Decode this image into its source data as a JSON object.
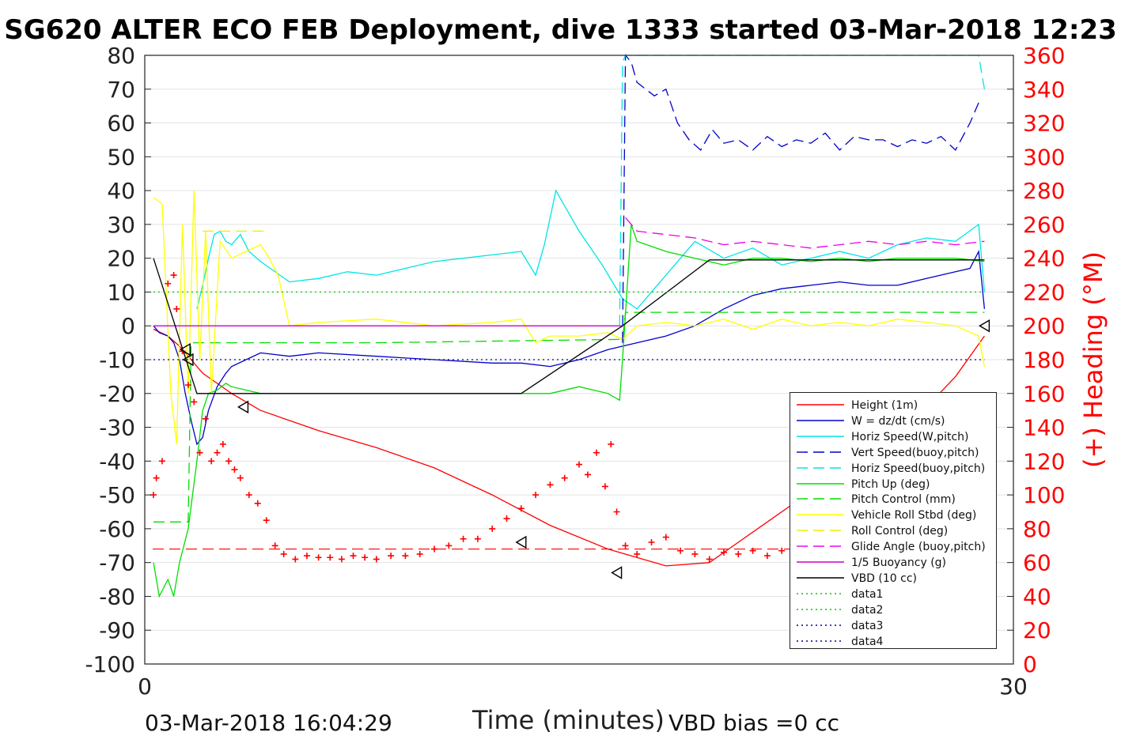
{
  "header": {
    "title": "SG620 ALTER ECO FEB Deployment, dive 1333 started 03-Mar-2018 12:23",
    "footer_date": "03-Mar-2018 16:04:29",
    "footer_bias": "VBD bias =0 cc"
  },
  "chart_data": {
    "type": "line",
    "xlabel": "Time (minutes)",
    "ylabel_right": "(+) Heading (°M)",
    "xlim": [
      0,
      30
    ],
    "ylim_left": [
      -100,
      80
    ],
    "ylim_right": [
      0,
      360
    ],
    "x_ticks": [
      "0",
      "30"
    ],
    "y_left_ticks": [
      "-100",
      "-90",
      "-80",
      "-70",
      "-60",
      "-50",
      "-40",
      "-30",
      "-20",
      "-10",
      "0",
      "10",
      "20",
      "30",
      "40",
      "50",
      "60",
      "70",
      "80"
    ],
    "y_right_ticks": [
      "0",
      "20",
      "40",
      "60",
      "80",
      "100",
      "120",
      "140",
      "160",
      "180",
      "200",
      "220",
      "240",
      "260",
      "280",
      "300",
      "320",
      "340",
      "360"
    ],
    "grid": true,
    "legend_position": "bottom-right",
    "colors": {
      "height": "#ff0000",
      "w": "#0000cc",
      "hspeed": "#00e5e5",
      "vspeed_buoy": "#0000cc",
      "hspeed_buoy": "#00e5e5",
      "pitch": "#00dd00",
      "pitch_control": "#00dd00",
      "roll": "#ffff00",
      "roll_control": "#eeee00",
      "glide": "#ee00ee",
      "buoyancy": "#cc00cc",
      "vbd": "#000000",
      "data1": "#00cc00",
      "data2": "#00cc00",
      "data3": "#000099",
      "data4": "#000099",
      "heading": "#ff0000",
      "right_axis": "#ff0000"
    },
    "legend": [
      {
        "label": "Height (1m)",
        "color": "#ff0000",
        "style": "solid"
      },
      {
        "label": "W = dz/dt (cm/s)",
        "color": "#0000cc",
        "style": "solid"
      },
      {
        "label": "Horiz Speed(W,pitch)",
        "color": "#00e5e5",
        "style": "solid"
      },
      {
        "label": "Vert Speed(buoy,pitch)",
        "color": "#0000cc",
        "style": "dashed"
      },
      {
        "label": "Horiz Speed(buoy,pitch)",
        "color": "#00e5e5",
        "style": "dashed"
      },
      {
        "label": "Pitch Up (deg)",
        "color": "#00dd00",
        "style": "solid"
      },
      {
        "label": "Pitch Control (mm)",
        "color": "#00dd00",
        "style": "dashed"
      },
      {
        "label": "Vehicle Roll Stbd (deg)",
        "color": "#ffff00",
        "style": "solid"
      },
      {
        "label": "Roll Control (deg)",
        "color": "#eeee00",
        "style": "dashed"
      },
      {
        "label": "Glide Angle (buoy,pitch)",
        "color": "#ee00ee",
        "style": "dashed"
      },
      {
        "label": "1/5 Buoyancy (g)",
        "color": "#cc00cc",
        "style": "solid"
      },
      {
        "label": "VBD (10 cc)",
        "color": "#000000",
        "style": "solid"
      },
      {
        "label": "data1",
        "color": "#00cc00",
        "style": "dotted"
      },
      {
        "label": "data2",
        "color": "#00cc00",
        "style": "dotted"
      },
      {
        "label": "data3",
        "color": "#000099",
        "style": "dotted"
      },
      {
        "label": "data4",
        "color": "#000099",
        "style": "dotted"
      }
    ],
    "series": [
      {
        "key": "height",
        "name": "Height (1m)",
        "x": [
          0.3,
          0.8,
          1.2,
          1.6,
          2.0,
          2.5,
          3.0,
          4.0,
          5.0,
          6.0,
          8.0,
          10.0,
          12.0,
          14.0,
          16.0,
          18.0,
          19.5,
          20.5,
          21.5,
          23.0,
          24.5,
          26.0,
          27.0,
          28.0,
          29.0
        ],
        "y": [
          -1,
          -3,
          -6,
          -10,
          -14,
          -17,
          -20,
          -25,
          -28,
          -31,
          -36,
          -42,
          -50,
          -59,
          -66,
          -71,
          -70,
          -64,
          -58,
          -49,
          -39,
          -30,
          -24,
          -15,
          -3
        ]
      },
      {
        "key": "w",
        "name": "W = dz/dt (cm/s)",
        "x": [
          0.3,
          0.5,
          0.8,
          1.0,
          1.2,
          1.4,
          1.6,
          1.8,
          2.0,
          2.2,
          2.5,
          2.8,
          3.0,
          3.5,
          4.0,
          5.0,
          6.0,
          8.0,
          10.0,
          12.0,
          13.0,
          14.0,
          15.0,
          16.0,
          17.0,
          18.0,
          19.0,
          20.0,
          21.0,
          22.0,
          23.0,
          24.0,
          25.0,
          26.0,
          27.0,
          28.0,
          28.5,
          28.8,
          29.0
        ],
        "y": [
          0,
          -2,
          -3,
          -5,
          -10,
          -20,
          -28,
          -35,
          -33,
          -25,
          -18,
          -14,
          -12,
          -10,
          -8,
          -9,
          -8,
          -9,
          -10,
          -11,
          -11,
          -12,
          -10,
          -7,
          -5,
          -3,
          0,
          5,
          9,
          11,
          12,
          13,
          12,
          12,
          14,
          16,
          17,
          22,
          5
        ]
      },
      {
        "key": "hspeed",
        "name": "Horiz Speed(W,pitch)",
        "x": [
          1.8,
          2.0,
          2.2,
          2.4,
          2.6,
          2.8,
          3.0,
          3.3,
          3.6,
          4.0,
          5.0,
          6.0,
          7.0,
          8.0,
          9.0,
          10.0,
          11.0,
          12.0,
          13.0,
          13.5,
          13.8,
          14.2,
          15.0,
          15.8,
          16.5,
          17.0,
          18.0,
          19.0,
          20.0,
          21.0,
          22.0,
          23.0,
          24.0,
          25.0,
          26.0,
          27.0,
          28.0,
          28.8,
          29.0
        ],
        "y": [
          5,
          12,
          20,
          27,
          28,
          25,
          24,
          27,
          22,
          19,
          13,
          14,
          16,
          15,
          17,
          19,
          20,
          21,
          22,
          15,
          24,
          40,
          28,
          18,
          8,
          5,
          15,
          25,
          20,
          23,
          18,
          20,
          22,
          20,
          24,
          26,
          25,
          30,
          10
        ]
      },
      {
        "key": "pitch",
        "name": "Pitch Up (deg)",
        "x": [
          0.3,
          0.5,
          0.8,
          1.0,
          1.2,
          1.5,
          1.8,
          2.0,
          2.2,
          2.5,
          2.8,
          3.0,
          3.5,
          4.0,
          5.0,
          6.0,
          8.0,
          10.0,
          12.0,
          13.0,
          14.0,
          15.0,
          16.0,
          16.4,
          16.5,
          16.8,
          17.0,
          18.0,
          19.0,
          20.0,
          21.0,
          22.0,
          23.0,
          24.0,
          25.0,
          26.0,
          27.0,
          28.0,
          29.0
        ],
        "y": [
          -70,
          -80,
          -75,
          -80,
          -70,
          -60,
          -40,
          -25,
          -20,
          -19,
          -17,
          -18,
          -19,
          -20,
          -20,
          -20,
          -20,
          -20,
          -20,
          -20,
          -20,
          -18,
          -20,
          -22,
          -10,
          30,
          25,
          22,
          20,
          18,
          20,
          20,
          19,
          20,
          19,
          20,
          20,
          20,
          19
        ]
      },
      {
        "key": "pitch_control",
        "name": "Pitch Control (mm)",
        "style": "dashed",
        "x": [
          0.3,
          1.5,
          1.6,
          2.0,
          8.0,
          16.5,
          16.6,
          29.0
        ],
        "y": [
          -58,
          -58,
          -5,
          -5,
          -5,
          -4,
          4,
          4
        ]
      },
      {
        "key": "roll",
        "name": "Vehicle Roll Stbd (deg)",
        "x": [
          0.3,
          0.6,
          0.9,
          1.1,
          1.3,
          1.5,
          1.7,
          1.9,
          2.1,
          2.3,
          2.6,
          3.0,
          3.5,
          4.0,
          4.3,
          4.6,
          5.0,
          6.0,
          8.0,
          10.0,
          12.0,
          13.0,
          13.5,
          14.0,
          15.0,
          16.0,
          16.5,
          17.0,
          18.0,
          19.0,
          20.0,
          21.0,
          22.0,
          23.0,
          24.0,
          25.0,
          26.0,
          27.0,
          28.0,
          28.8,
          29.0
        ],
        "y": [
          38,
          36,
          -20,
          -35,
          30,
          -20,
          40,
          -10,
          28,
          -20,
          25,
          20,
          22,
          24,
          20,
          15,
          0,
          1,
          2,
          0,
          1,
          2,
          -5,
          -3,
          -3,
          -2,
          -4,
          0,
          1,
          0,
          2,
          -1,
          2,
          0,
          1,
          0,
          2,
          1,
          0,
          -3,
          -12
        ]
      },
      {
        "key": "roll_control",
        "name": "Roll Control (deg)",
        "style": "dashed",
        "x": [
          2.0,
          4.2
        ],
        "y": [
          28,
          28
        ]
      },
      {
        "key": "glide",
        "name": "Glide Angle (buoy,pitch)",
        "style": "dashed",
        "x": [
          16.6,
          17.0,
          18.0,
          19.0,
          20.0,
          21.0,
          22.0,
          23.0,
          24.0,
          25.0,
          26.0,
          27.0,
          28.0,
          29.0
        ],
        "y": [
          32,
          28,
          27,
          26,
          24,
          25,
          24,
          23,
          24,
          25,
          24,
          25,
          24,
          25
        ]
      },
      {
        "key": "buoyancy",
        "name": "1/5 Buoyancy (g)",
        "x": [
          0.3,
          8.0,
          16.5
        ],
        "y": [
          0,
          0,
          0
        ]
      },
      {
        "key": "vbd",
        "name": "VBD (10 cc)",
        "x": [
          0.3,
          1.8,
          13.0,
          16.5,
          19.5,
          29.0
        ],
        "y": [
          20,
          -20,
          -20,
          0,
          19.5,
          19.5
        ]
      },
      {
        "key": "vspeed_buoy",
        "name": "Vert Speed(buoy,pitch)",
        "style": "dashed",
        "x": [
          16.5,
          16.6,
          16.8,
          17.0,
          17.3,
          17.6,
          18.0,
          18.4,
          18.8,
          19.2,
          19.6,
          20.0,
          20.5,
          21.0,
          21.5,
          22.0,
          22.5,
          23.0,
          23.5,
          24.0,
          24.5,
          25.0,
          25.5,
          26.0,
          26.5,
          27.0,
          27.5,
          28.0,
          28.5,
          28.8
        ],
        "y": [
          -5,
          80,
          78,
          72,
          70,
          68,
          70,
          60,
          55,
          52,
          58,
          54,
          55,
          52,
          56,
          53,
          55,
          54,
          57,
          52,
          56,
          55,
          55,
          53,
          55,
          54,
          56,
          52,
          60,
          66
        ]
      },
      {
        "key": "hspeed_buoy",
        "name": "Horiz Speed(buoy,pitch)",
        "style": "dashed",
        "x": [
          16.4,
          16.5,
          16.6,
          28.8,
          29.0
        ],
        "y": [
          0,
          78,
          80,
          80,
          70
        ]
      },
      {
        "key": "data1",
        "name": "data1",
        "style": "dotted",
        "x": [
          0.3,
          29.0
        ],
        "y": [
          10,
          10
        ]
      },
      {
        "key": "data4",
        "name": "data4",
        "style": "dotted",
        "x": [
          0.3,
          29.0
        ],
        "y": [
          -10,
          -10
        ]
      }
    ],
    "heading_points": {
      "name": "Heading",
      "x": [
        0.3,
        0.4,
        0.6,
        0.8,
        1.0,
        1.1,
        1.3,
        1.5,
        1.7,
        1.9,
        2.1,
        2.3,
        2.5,
        2.7,
        2.9,
        3.1,
        3.3,
        3.6,
        3.9,
        4.2,
        4.5,
        4.8,
        5.2,
        5.6,
        6.0,
        6.4,
        6.8,
        7.2,
        7.6,
        8.0,
        8.5,
        9.0,
        9.5,
        10.0,
        10.5,
        11.0,
        11.5,
        12.0,
        12.5,
        13.0,
        13.5,
        14.0,
        14.5,
        15.0,
        15.3,
        15.6,
        15.9,
        16.1,
        16.3,
        16.6,
        17.0,
        17.5,
        18.0,
        18.5,
        19.0,
        19.5,
        20.0,
        20.5,
        21.0,
        21.5,
        22.0,
        22.5,
        23.0,
        23.5,
        24.0,
        24.5,
        25.0,
        25.5,
        26.0,
        26.5,
        27.0,
        27.5,
        28.0,
        28.5
      ],
      "y": [
        100,
        110,
        120,
        225,
        230,
        210,
        185,
        165,
        155,
        125,
        145,
        120,
        125,
        130,
        120,
        115,
        110,
        100,
        95,
        85,
        70,
        65,
        62,
        64,
        63,
        63,
        62,
        64,
        63,
        62,
        64,
        64,
        65,
        68,
        70,
        74,
        74,
        80,
        86,
        92,
        100,
        106,
        110,
        118,
        112,
        125,
        105,
        130,
        90,
        70,
        65,
        72,
        75,
        67,
        65,
        62,
        66,
        65,
        67,
        64,
        67,
        65,
        62,
        66,
        65,
        64,
        65,
        67,
        66,
        70,
        70,
        65,
        62,
        48
      ]
    },
    "heading_reference": {
      "value": 68,
      "style": "dashed"
    },
    "markers": [
      {
        "x": 1.4,
        "y": -7
      },
      {
        "x": 1.5,
        "y": -10
      },
      {
        "x": 3.4,
        "y": -24
      },
      {
        "x": 13.0,
        "y": -64
      },
      {
        "x": 16.3,
        "y": -73
      },
      {
        "x": 29.0,
        "y": 0
      }
    ]
  }
}
